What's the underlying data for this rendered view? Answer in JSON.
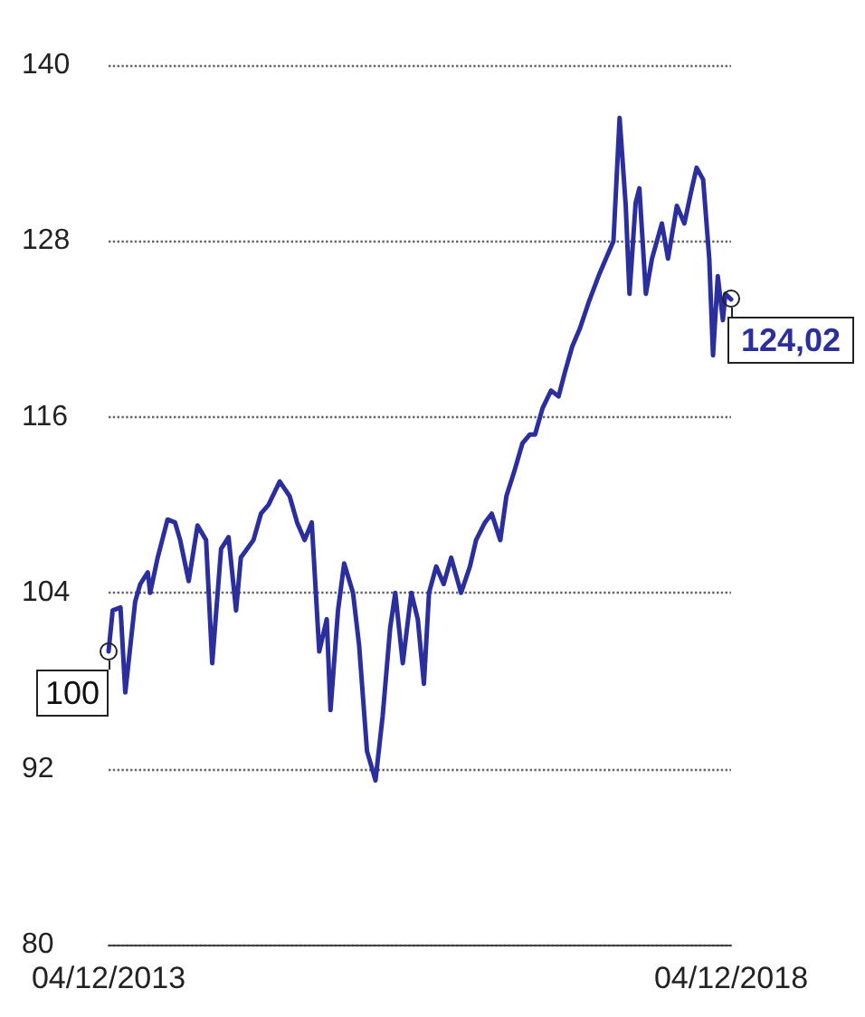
{
  "chart_data": {
    "type": "line",
    "x": [
      "2013-12-04",
      "2013-12-16",
      "2014-01-08",
      "2014-01-22",
      "2014-02-20",
      "2014-03-07",
      "2014-03-29",
      "2014-04-05",
      "2014-04-27",
      "2014-05-26",
      "2014-06-17",
      "2014-07-02",
      "2014-07-27",
      "2014-08-22",
      "2014-09-16",
      "2014-10-04",
      "2014-10-30",
      "2014-11-21",
      "2014-12-13",
      "2014-12-27",
      "2015-02-02",
      "2015-02-24",
      "2015-03-18",
      "2015-04-20",
      "2015-05-19",
      "2015-06-10",
      "2015-07-02",
      "2015-07-23",
      "2015-08-14",
      "2015-09-05",
      "2015-09-16",
      "2015-10-08",
      "2015-10-26",
      "2015-11-21",
      "2015-12-09",
      "2016-01-01",
      "2016-01-26",
      "2016-02-16",
      "2016-03-09",
      "2016-03-24",
      "2016-04-15",
      "2016-05-10",
      "2016-05-29",
      "2016-06-16",
      "2016-07-01",
      "2016-07-22",
      "2016-08-13",
      "2016-09-04",
      "2016-10-03",
      "2016-10-29",
      "2016-11-16",
      "2016-12-12",
      "2017-01-01",
      "2017-01-26",
      "2017-02-13",
      "2017-03-07",
      "2017-04-01",
      "2017-04-23",
      "2017-05-08",
      "2017-05-30",
      "2017-06-24",
      "2017-07-16",
      "2017-08-03",
      "2017-08-25",
      "2017-09-16",
      "2017-10-12",
      "2017-11-10",
      "2017-12-02",
      "2017-12-24",
      "2018-01-11",
      "2018-01-29",
      "2018-02-09",
      "2018-02-27",
      "2018-03-10",
      "2018-03-29",
      "2018-04-16",
      "2018-05-15",
      "2018-06-02",
      "2018-06-28",
      "2018-07-20",
      "2018-08-11",
      "2018-08-25",
      "2018-09-13",
      "2018-10-01",
      "2018-10-12",
      "2018-10-26",
      "2018-11-10",
      "2018-11-17",
      "2018-12-04"
    ],
    "series": [
      {
        "color": "#2b2f9e",
        "values": [
          100,
          102.8,
          103.0,
          97.2,
          103.4,
          104.6,
          105.4,
          104.0,
          106.4,
          109.0,
          108.8,
          107.6,
          104.8,
          108.6,
          107.6,
          99.2,
          107.0,
          107.8,
          102.8,
          106.4,
          107.6,
          109.4,
          110.0,
          111.6,
          110.6,
          108.8,
          107.6,
          108.8,
          100.0,
          102.2,
          96.0,
          102.8,
          106.0,
          104.0,
          100.4,
          93.2,
          91.2,
          95.6,
          101.6,
          104.0,
          99.2,
          104.0,
          102.2,
          97.8,
          104.0,
          105.8,
          104.6,
          106.4,
          104.0,
          105.8,
          107.6,
          108.8,
          109.4,
          107.6,
          110.6,
          112.2,
          114.2,
          114.8,
          114.8,
          116.6,
          117.8,
          117.4,
          119.0,
          120.8,
          122.0,
          123.8,
          125.6,
          126.8,
          128.0,
          136.4,
          130.4,
          124.4,
          130.6,
          131.6,
          124.4,
          126.8,
          129.2,
          126.8,
          130.4,
          129.2,
          131.6,
          133.0,
          132.2,
          126.8,
          120.2,
          125.6,
          122.6,
          124.4,
          124.02
        ]
      }
    ],
    "xlim": [
      "2013-12-04",
      "2018-12-04"
    ],
    "xticks": [
      {
        "value": "2013-12-04",
        "label": "04/12/2013"
      },
      {
        "value": "2018-12-04",
        "label": "04/12/2018"
      }
    ],
    "ylim": [
      80,
      140
    ],
    "yticks": [
      80,
      92,
      104,
      116,
      128,
      140
    ],
    "grid": "y",
    "legend": false,
    "marker": "none",
    "line_style": "solid",
    "annotations": [
      {
        "text": "100",
        "x": "2013-12-04",
        "y": 100
      },
      {
        "text": "124,02",
        "x": "2018-12-04",
        "y": 124.02
      }
    ]
  }
}
